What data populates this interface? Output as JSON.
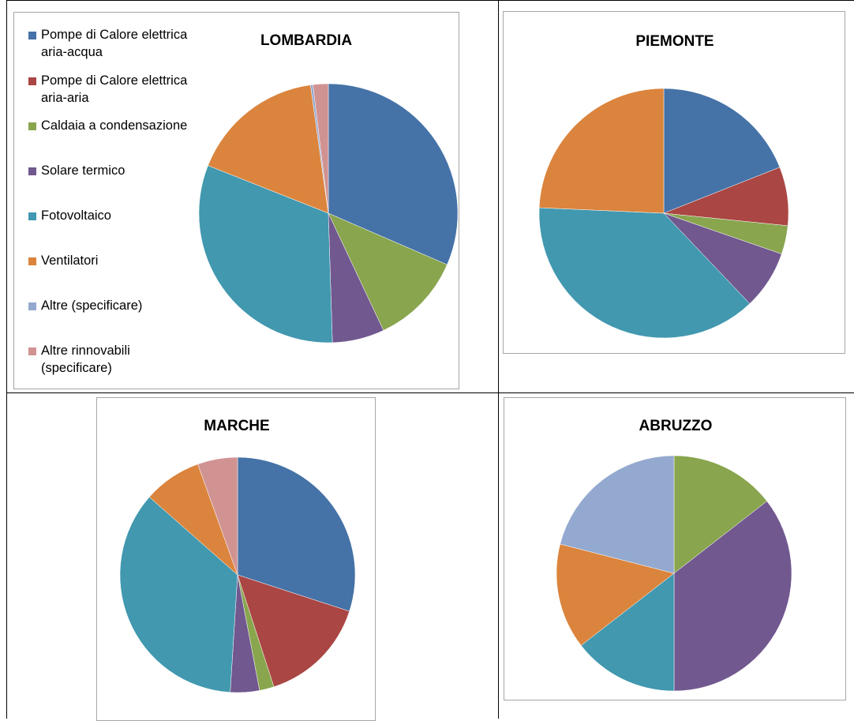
{
  "legend": [
    {
      "label": "Pompe di Calore elettrica aria-acqua",
      "color": "#4572a7"
    },
    {
      "label": "Pompe di Calore elettrica aria-aria",
      "color": "#aa4643"
    },
    {
      "label": "Caldaia a condensazione",
      "color": "#89a54e"
    },
    {
      "label": "Solare termico",
      "color": "#71588f"
    },
    {
      "label": "Fotovoltaico",
      "color": "#4198af"
    },
    {
      "label": "Ventilatori",
      "color": "#db843d"
    },
    {
      "label": "Altre  (specificare)",
      "color": "#93a9cf"
    },
    {
      "label": "Altre rinnovabili (specificare)",
      "color": "#d19392"
    }
  ],
  "chart_data": [
    {
      "type": "pie",
      "title": "LOMBARDIA",
      "categories": [
        "Pompe di Calore elettrica aria-acqua",
        "Pompe di Calore elettrica aria-aria",
        "Caldaia a condensazione",
        "Solare termico",
        "Fotovoltaico",
        "Ventilatori",
        "Altre  (specificare)",
        "Altre rinnovabili (specificare)"
      ],
      "values": [
        31.5,
        0,
        11.5,
        6.5,
        31.5,
        16.8,
        0.3,
        1.9
      ]
    },
    {
      "type": "pie",
      "title": "PIEMONTE",
      "categories": [
        "Pompe di Calore elettrica aria-acqua",
        "Pompe di Calore elettrica aria-aria",
        "Caldaia a condensazione",
        "Solare termico",
        "Fotovoltaico",
        "Ventilatori",
        "Altre  (specificare)",
        "Altre rinnovabili (specificare)"
      ],
      "values": [
        19.0,
        7.6,
        3.7,
        7.6,
        37.8,
        24.3,
        0,
        0
      ]
    },
    {
      "type": "pie",
      "title": "MARCHE",
      "categories": [
        "Pompe di Calore elettrica aria-acqua",
        "Pompe di Calore elettrica aria-aria",
        "Caldaia a condensazione",
        "Solare termico",
        "Fotovoltaico",
        "Ventilatori",
        "Altre  (specificare)",
        "Altre rinnovabili (specificare)"
      ],
      "values": [
        30.0,
        15.0,
        2.0,
        4.0,
        35.5,
        8.0,
        0,
        5.5
      ]
    },
    {
      "type": "pie",
      "title": "ABRUZZO",
      "categories": [
        "Pompe di Calore elettrica aria-acqua",
        "Pompe di Calore elettrica aria-aria",
        "Caldaia a condensazione",
        "Solare termico",
        "Fotovoltaico",
        "Ventilatori",
        "Altre  (specificare)",
        "Altre rinnovabili (specificare)"
      ],
      "values": [
        0,
        0,
        14.5,
        35.5,
        14.5,
        14.5,
        21.0,
        0
      ]
    }
  ]
}
